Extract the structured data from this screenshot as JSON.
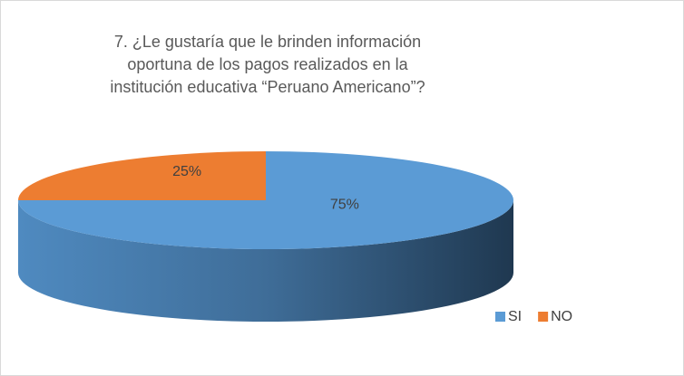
{
  "chart_data": {
    "type": "pie3d",
    "title": "7. ¿Le gustaría que le brinden información oportuna de los pagos realizados en la institución educativa “Peruano Americano”?",
    "categories": [
      "SI",
      "NO"
    ],
    "values": [
      75,
      25
    ],
    "value_labels": [
      "75%",
      "25%"
    ],
    "colors": [
      "#5b9bd5",
      "#ed7d31"
    ],
    "legend": "bottom-right"
  }
}
